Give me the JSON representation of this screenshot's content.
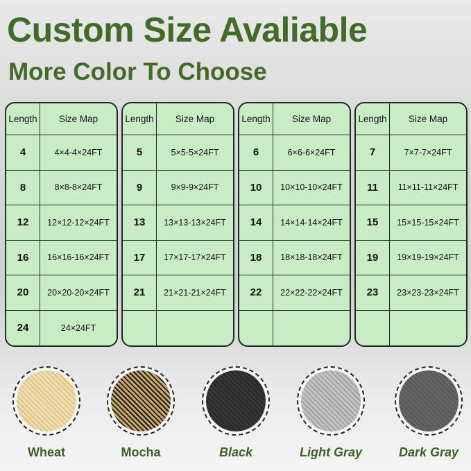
{
  "title": "Custom Size Avaliable",
  "subtitle": "More Color To Choose",
  "table_headers": {
    "length": "Length",
    "size_map": "Size Map"
  },
  "tables": [
    {
      "rows": [
        [
          "4",
          "4×4-4×24FT"
        ],
        [
          "8",
          "8×8-8×24FT"
        ],
        [
          "12",
          "12×12-12×24FT"
        ],
        [
          "16",
          "16×16-16×24FT"
        ],
        [
          "20",
          "20×20-20×24FT"
        ],
        [
          "24",
          "24×24FT"
        ]
      ]
    },
    {
      "rows": [
        [
          "5",
          "5×5-5×24FT"
        ],
        [
          "9",
          "9×9-9×24FT"
        ],
        [
          "13",
          "13×13-13×24FT"
        ],
        [
          "17",
          "17×17-17×24FT"
        ],
        [
          "21",
          "21×21-21×24FT"
        ],
        [
          "",
          ""
        ]
      ]
    },
    {
      "rows": [
        [
          "6",
          "6×6-6×24FT"
        ],
        [
          "10",
          "10×10-10×24FT"
        ],
        [
          "14",
          "14×14-14×24FT"
        ],
        [
          "18",
          "18×18-18×24FT"
        ],
        [
          "22",
          "22×22-22×24FT"
        ],
        [
          "",
          ""
        ]
      ]
    },
    {
      "rows": [
        [
          "7",
          "7×7-7×24FT"
        ],
        [
          "11",
          "11×11-11×24FT"
        ],
        [
          "15",
          "15×15-15×24FT"
        ],
        [
          "19",
          "19×19-19×24FT"
        ],
        [
          "23",
          "23×23-23×24FT"
        ],
        [
          "",
          ""
        ]
      ]
    }
  ],
  "colors": [
    {
      "name": "Wheat",
      "swatch": "#e3c98f",
      "accent": "#f3e4bd"
    },
    {
      "name": "Mocha",
      "swatch": "#c9a86e",
      "accent": "#1a1a1a"
    },
    {
      "name": "Black",
      "swatch": "#2a2a2a",
      "accent": "#3b3b3b"
    },
    {
      "name": "Light Gray",
      "swatch": "#a9a9a9",
      "accent": "#c9c9c9"
    },
    {
      "name": "Dark Gray",
      "swatch": "#5a5a5a",
      "accent": "#676767"
    }
  ],
  "title_color": "#426b2a"
}
